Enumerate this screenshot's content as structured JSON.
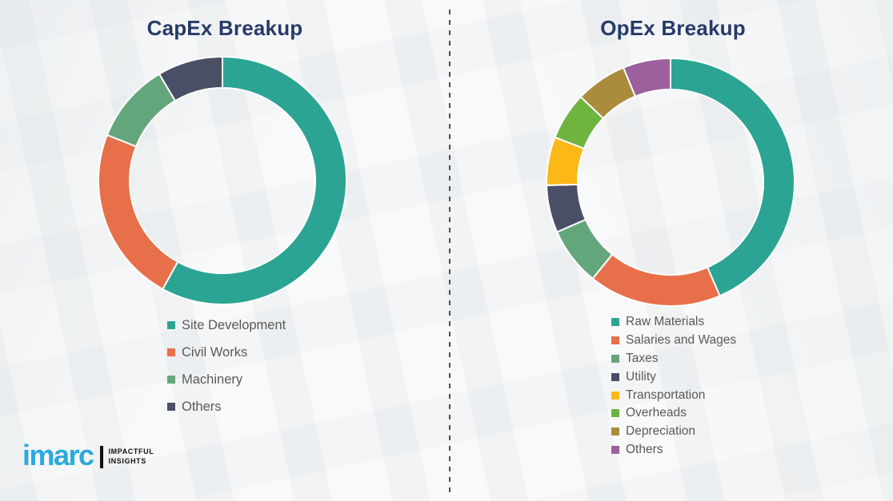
{
  "page": {
    "background_color": "#f4f5f6",
    "divider_color": "#4d4d4d",
    "title_color": "#273a69",
    "legend_text_color": "#595959"
  },
  "chart_data": [
    {
      "type": "pie",
      "subtype": "donut",
      "title": "CapEx Breakup",
      "categories": [
        "Site Development",
        "Civil Works",
        "Machinery",
        "Others"
      ],
      "values": [
        58,
        23,
        10.5,
        8.5
      ],
      "values_unit": "percent (estimated from arc angles)",
      "colors": [
        "#2ba493",
        "#e7704a",
        "#64a67b",
        "#495066"
      ],
      "start_angle_deg": 0,
      "direction": "clockwise",
      "legend_position": "bottom",
      "data_labels": "none"
    },
    {
      "type": "pie",
      "subtype": "donut",
      "title": "OpEx Breakup",
      "categories": [
        "Raw Materials",
        "Salaries and Wages",
        "Taxes",
        "Utility",
        "Transportation",
        "Overheads",
        "Depreciation",
        "Others"
      ],
      "values": [
        43.5,
        17.3,
        7.6,
        6.2,
        6.3,
        6.2,
        6.7,
        6.2
      ],
      "values_unit": "percent (estimated from arc angles)",
      "colors": [
        "#2ba493",
        "#e7704a",
        "#64a67b",
        "#495066",
        "#fbb817",
        "#70b440",
        "#ab8b3c",
        "#9c609d"
      ],
      "start_angle_deg": 0,
      "direction": "clockwise",
      "legend_position": "bottom",
      "data_labels": "none"
    }
  ],
  "logo": {
    "brand": "imarc",
    "tagline_line1": "IMPACTFUL",
    "tagline_line2": "INSIGHTS",
    "brand_color": "#29a9e0"
  }
}
